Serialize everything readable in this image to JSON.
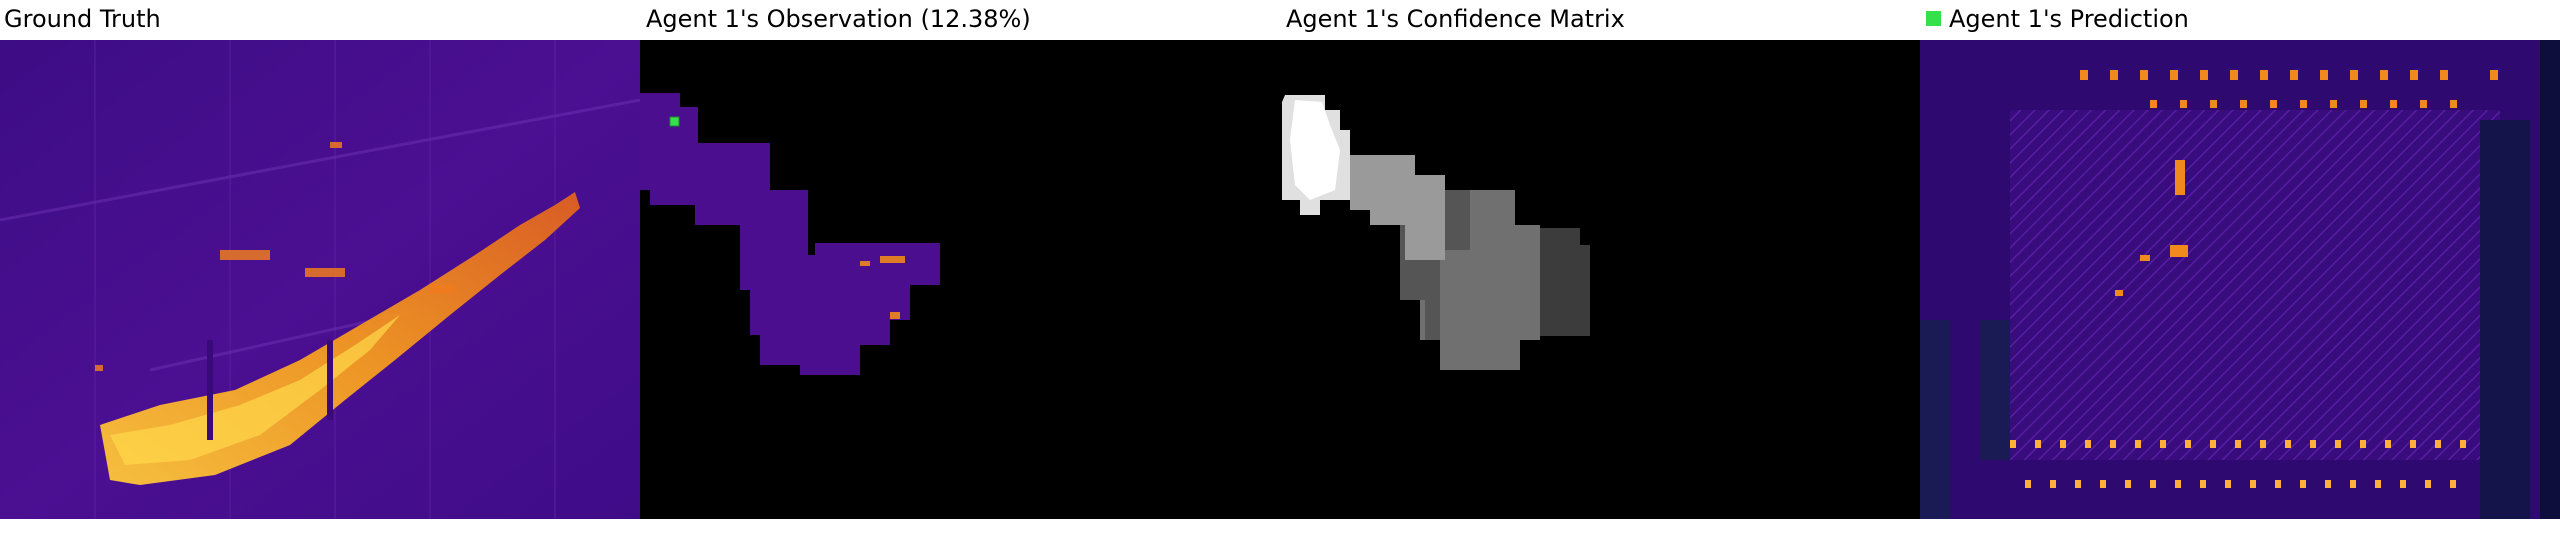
{
  "panels": [
    {
      "title": "Ground Truth"
    },
    {
      "title": "Agent 1's Observation (12.38%)"
    },
    {
      "title": "Agent 1's Confidence Matrix"
    },
    {
      "title": "Agent 1's Prediction"
    }
  ],
  "legend": {
    "marker_color": "#35e04a",
    "marker_name": "green-square-marker"
  },
  "colors": {
    "background_purple": "#4a0e8e",
    "dark_purple": "#2b0a6b",
    "hot_orange": "#f08a1c",
    "hot_yellow": "#ffd53a",
    "black": "#000000"
  }
}
